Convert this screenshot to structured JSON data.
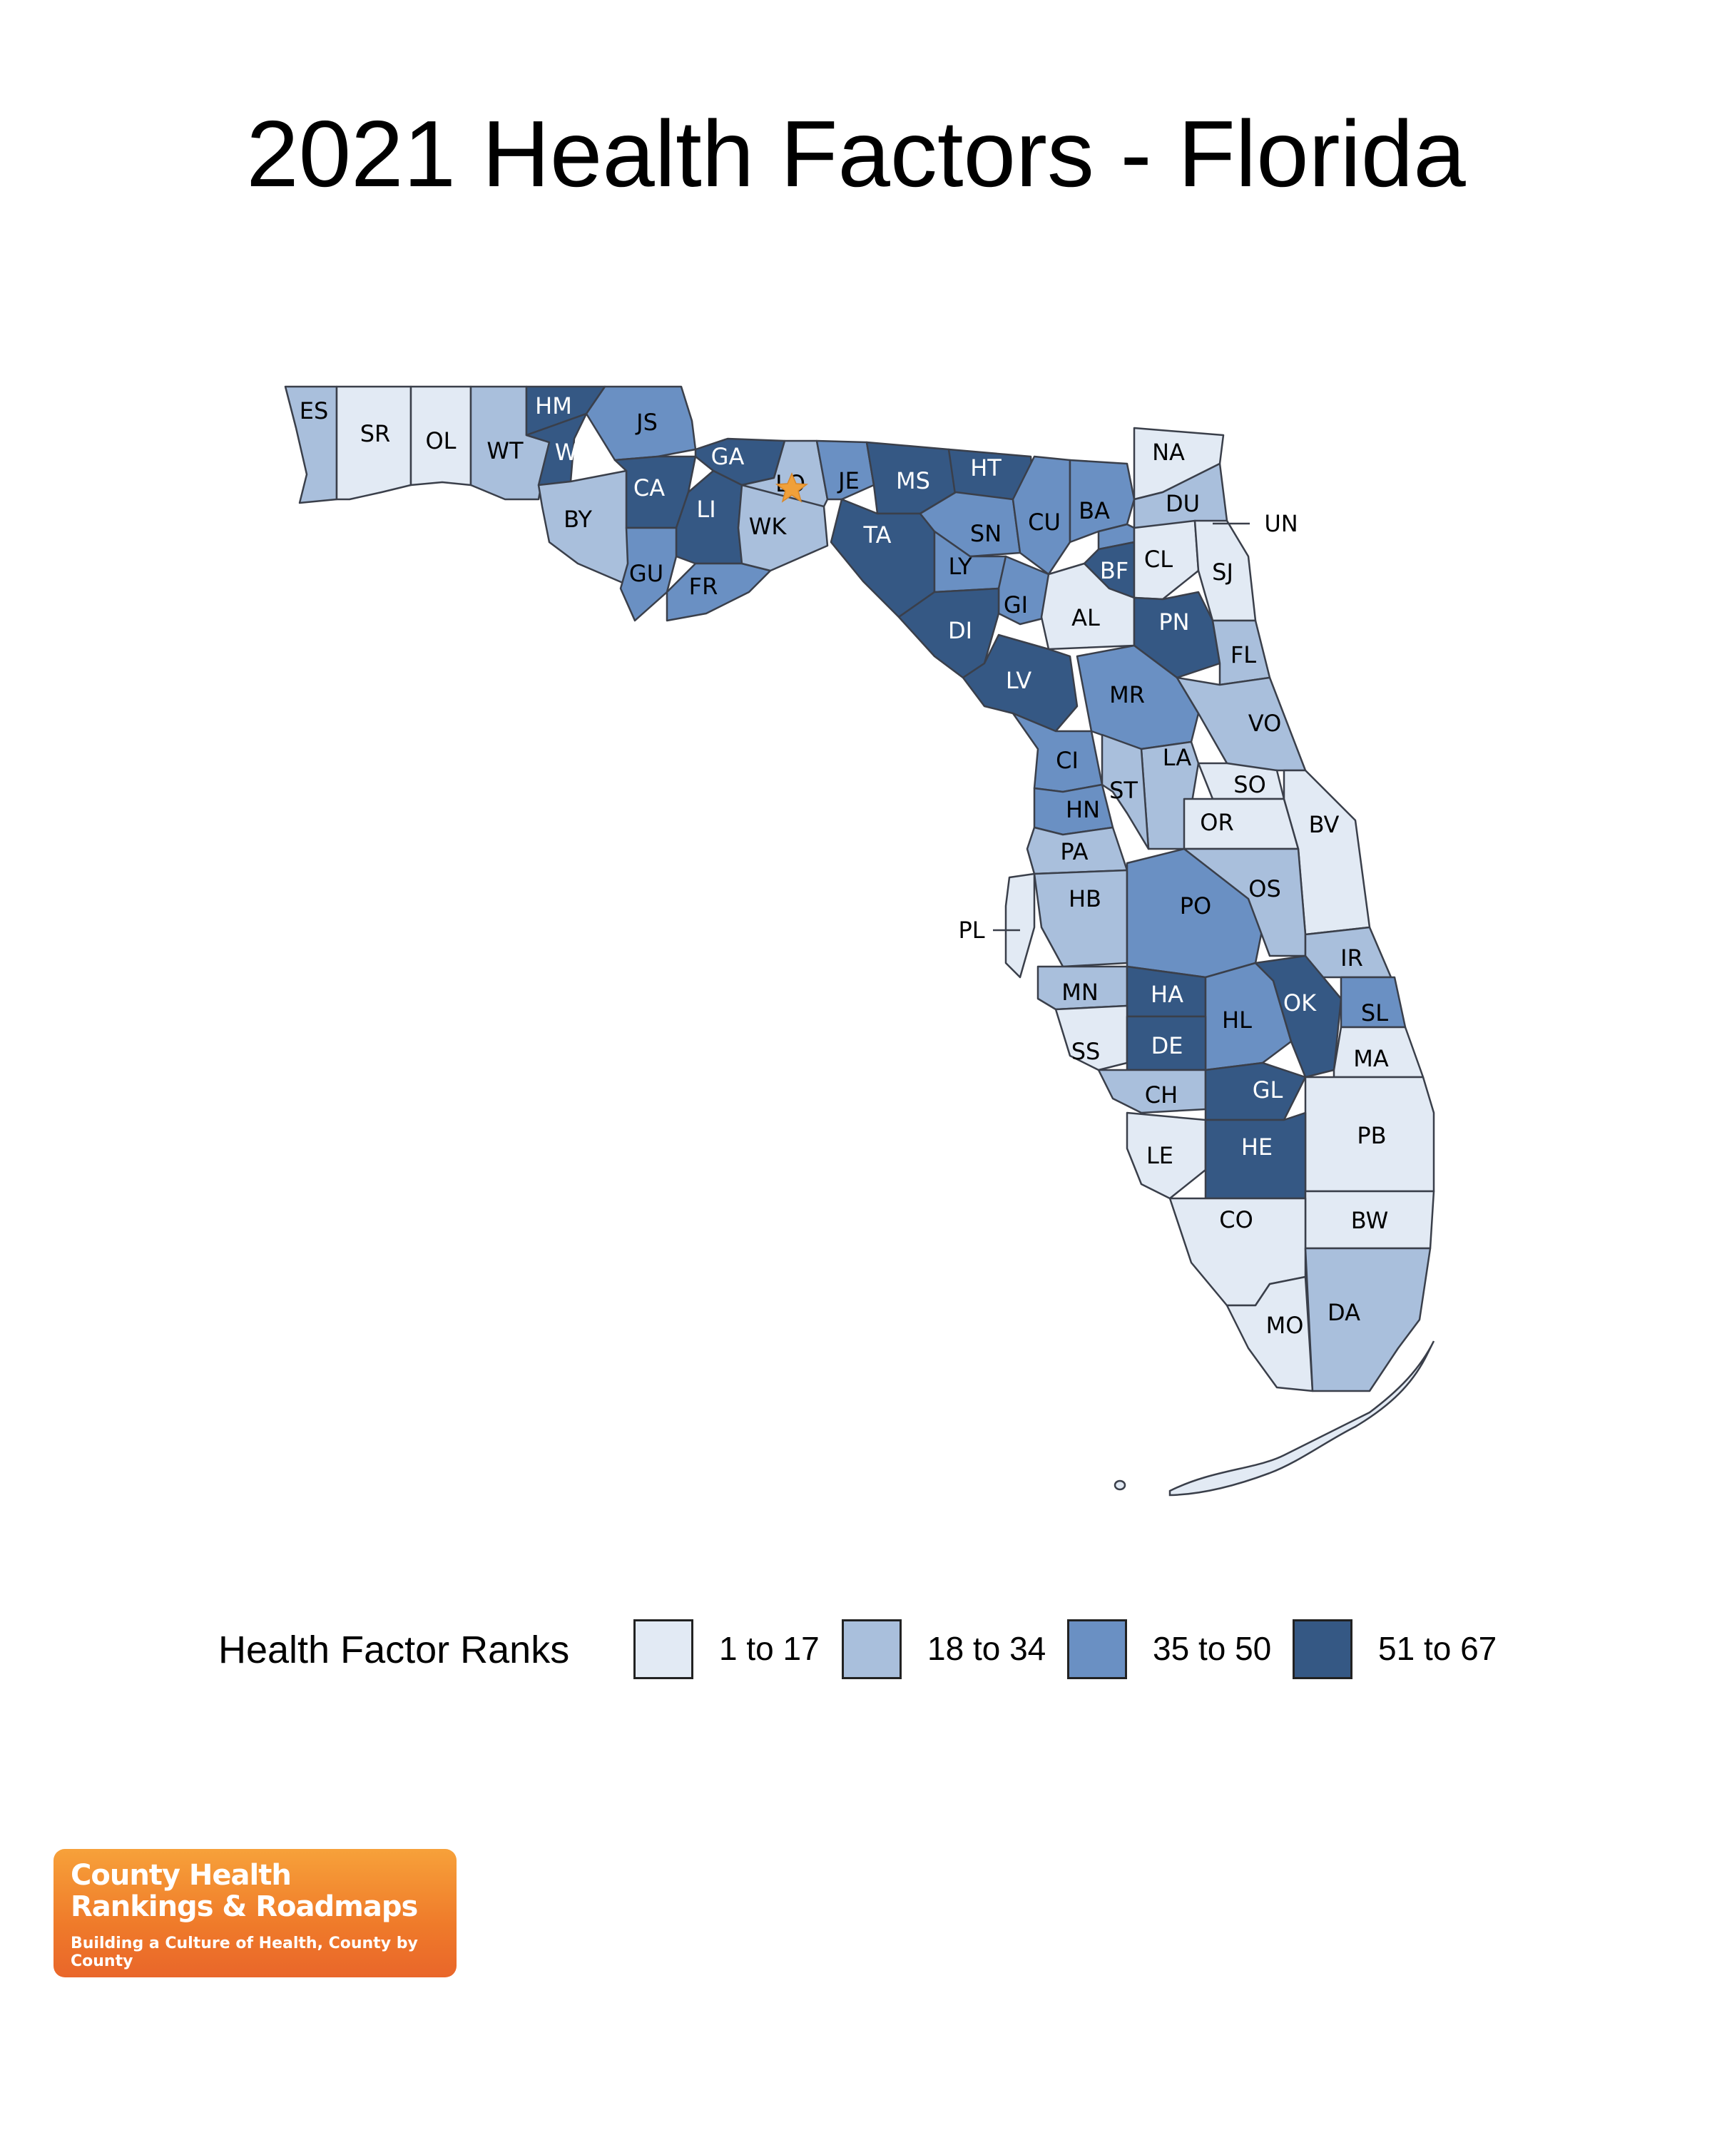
{
  "title": "2021 Health Factors - Florida",
  "legend": {
    "title": "Health Factor Ranks",
    "bins": [
      {
        "label": "1 to 17",
        "color": "#e2eaf4"
      },
      {
        "label": "18 to 34",
        "color": "#a9bfdc"
      },
      {
        "label": "35 to 50",
        "color": "#6a90c3"
      },
      {
        "label": "51 to 67",
        "color": "#355884"
      }
    ]
  },
  "logo": {
    "line1": "County Health",
    "line2": "Rankings & Roadmaps",
    "tagline": "Building a Culture of Health, County by County"
  },
  "colors": {
    "light_label": "#000000",
    "dark_label": "#ffffff",
    "border": "#3a3f4a",
    "star": "#f0a03a"
  },
  "counties": [
    {
      "abbr": "ES",
      "bin": 1
    },
    {
      "abbr": "SR",
      "bin": 0
    },
    {
      "abbr": "OL",
      "bin": 0
    },
    {
      "abbr": "WT",
      "bin": 1
    },
    {
      "abbr": "HM",
      "bin": 3
    },
    {
      "abbr": "WG",
      "bin": 3
    },
    {
      "abbr": "JS",
      "bin": 2
    },
    {
      "abbr": "CA",
      "bin": 3
    },
    {
      "abbr": "GA",
      "bin": 3
    },
    {
      "abbr": "BY",
      "bin": 1
    },
    {
      "abbr": "LI",
      "bin": 3
    },
    {
      "abbr": "GU",
      "bin": 2
    },
    {
      "abbr": "FR",
      "bin": 2
    },
    {
      "abbr": "WK",
      "bin": 1
    },
    {
      "abbr": "LO",
      "bin": 1
    },
    {
      "abbr": "JE",
      "bin": 2
    },
    {
      "abbr": "MS",
      "bin": 3
    },
    {
      "abbr": "HT",
      "bin": 3
    },
    {
      "abbr": "TA",
      "bin": 3
    },
    {
      "abbr": "SN",
      "bin": 2
    },
    {
      "abbr": "LY",
      "bin": 2
    },
    {
      "abbr": "CU",
      "bin": 2
    },
    {
      "abbr": "BA",
      "bin": 2
    },
    {
      "abbr": "NA",
      "bin": 0
    },
    {
      "abbr": "DU",
      "bin": 1
    },
    {
      "abbr": "UN",
      "bin": 2
    },
    {
      "abbr": "BF",
      "bin": 3
    },
    {
      "abbr": "CL",
      "bin": 0
    },
    {
      "abbr": "SJ",
      "bin": 0
    },
    {
      "abbr": "GI",
      "bin": 2
    },
    {
      "abbr": "DI",
      "bin": 3
    },
    {
      "abbr": "AL",
      "bin": 0
    },
    {
      "abbr": "PN",
      "bin": 3
    },
    {
      "abbr": "FL",
      "bin": 1
    },
    {
      "abbr": "LV",
      "bin": 3
    },
    {
      "abbr": "MR",
      "bin": 2
    },
    {
      "abbr": "VO",
      "bin": 1
    },
    {
      "abbr": "CI",
      "bin": 2
    },
    {
      "abbr": "LA",
      "bin": 1
    },
    {
      "abbr": "ST",
      "bin": 1
    },
    {
      "abbr": "SO",
      "bin": 0
    },
    {
      "abbr": "OR",
      "bin": 0
    },
    {
      "abbr": "BV",
      "bin": 0
    },
    {
      "abbr": "HN",
      "bin": 2
    },
    {
      "abbr": "PA",
      "bin": 1
    },
    {
      "abbr": "HB",
      "bin": 1
    },
    {
      "abbr": "PL",
      "bin": 0
    },
    {
      "abbr": "PO",
      "bin": 2
    },
    {
      "abbr": "OS",
      "bin": 1
    },
    {
      "abbr": "IR",
      "bin": 1
    },
    {
      "abbr": "MN",
      "bin": 1
    },
    {
      "abbr": "HA",
      "bin": 3
    },
    {
      "abbr": "HL",
      "bin": 2
    },
    {
      "abbr": "OK",
      "bin": 3
    },
    {
      "abbr": "SL",
      "bin": 2
    },
    {
      "abbr": "SS",
      "bin": 0
    },
    {
      "abbr": "DE",
      "bin": 3
    },
    {
      "abbr": "MA",
      "bin": 0
    },
    {
      "abbr": "CH",
      "bin": 1
    },
    {
      "abbr": "GL",
      "bin": 3
    },
    {
      "abbr": "PB",
      "bin": 0
    },
    {
      "abbr": "LE",
      "bin": 0
    },
    {
      "abbr": "HE",
      "bin": 3
    },
    {
      "abbr": "BW",
      "bin": 0
    },
    {
      "abbr": "CO",
      "bin": 0
    },
    {
      "abbr": "MO",
      "bin": 0
    },
    {
      "abbr": "DA",
      "bin": 1
    }
  ]
}
